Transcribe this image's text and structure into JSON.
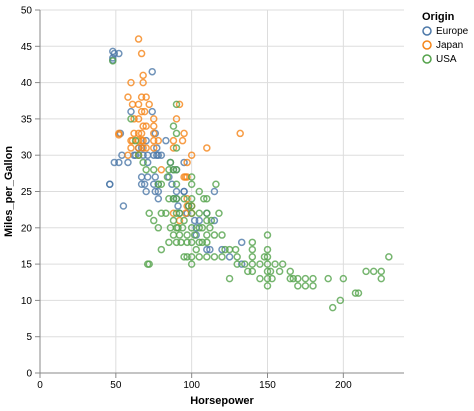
{
  "chart_data": {
    "type": "scatter",
    "xlabel": "Horsepower",
    "ylabel": "Miles_per_Gallon",
    "xlim": [
      0,
      240
    ],
    "ylim": [
      0,
      50
    ],
    "x_ticks": [
      0,
      50,
      100,
      150,
      200
    ],
    "y_ticks": [
      0,
      5,
      10,
      15,
      20,
      25,
      30,
      35,
      40,
      45,
      50
    ],
    "grid": true,
    "marker": "open-circle",
    "legend": {
      "title": "Origin",
      "position": "top-right",
      "entries": [
        "Europe",
        "Japan",
        "USA"
      ]
    },
    "colors": {
      "Europe": "#4c78a8",
      "Japan": "#f58518",
      "USA": "#54a24b"
    },
    "series": [
      {
        "name": "Europe",
        "points": [
          [
            46,
            26
          ],
          [
            46,
            26
          ],
          [
            48,
            43.1
          ],
          [
            48,
            44.3
          ],
          [
            48,
            43.4
          ],
          [
            49,
            29
          ],
          [
            49,
            44
          ],
          [
            52,
            44
          ],
          [
            52,
            29
          ],
          [
            53,
            33
          ],
          [
            54,
            30
          ],
          [
            58,
            29
          ],
          [
            60,
            36
          ],
          [
            62,
            30
          ],
          [
            63,
            30
          ],
          [
            65,
            31
          ],
          [
            67,
            31
          ],
          [
            67,
            26
          ],
          [
            67,
            27
          ],
          [
            68,
            30
          ],
          [
            69,
            26
          ],
          [
            70,
            25
          ],
          [
            70,
            32
          ],
          [
            71,
            27
          ],
          [
            71,
            29
          ],
          [
            71,
            30
          ],
          [
            74,
            36
          ],
          [
            74,
            41.5
          ],
          [
            75,
            30
          ],
          [
            75,
            26
          ],
          [
            76,
            33
          ],
          [
            76,
            25
          ],
          [
            76,
            27
          ],
          [
            77,
            31
          ],
          [
            77,
            30
          ],
          [
            78,
            30
          ],
          [
            78,
            26
          ],
          [
            78,
            25
          ],
          [
            78,
            24
          ],
          [
            80,
            30
          ],
          [
            83,
            32
          ],
          [
            85,
            27
          ],
          [
            86,
            29
          ],
          [
            87,
            26
          ],
          [
            88,
            28
          ],
          [
            88,
            24
          ],
          [
            90,
            28
          ],
          [
            90,
            25
          ],
          [
            90,
            24
          ],
          [
            91,
            23
          ],
          [
            92,
            22
          ],
          [
            95,
            25
          ],
          [
            95,
            29
          ],
          [
            95,
            25
          ],
          [
            97,
            22
          ],
          [
            98,
            23
          ],
          [
            102,
            21
          ],
          [
            103,
            19
          ],
          [
            103,
            20
          ],
          [
            105,
            21
          ],
          [
            110,
            22
          ],
          [
            110,
            17
          ],
          [
            112,
            17
          ],
          [
            115,
            25
          ],
          [
            115,
            21
          ],
          [
            120,
            17
          ],
          [
            125,
            16
          ],
          [
            133,
            15
          ],
          [
            133,
            18
          ],
          [
            55,
            23
          ]
        ]
      },
      {
        "name": "Japan",
        "points": [
          [
            52,
            32.8
          ],
          [
            52,
            33
          ],
          [
            58,
            38
          ],
          [
            58,
            30
          ],
          [
            60,
            32
          ],
          [
            60,
            40
          ],
          [
            60,
            31
          ],
          [
            61,
            32
          ],
          [
            61,
            37
          ],
          [
            62,
            33
          ],
          [
            62,
            35
          ],
          [
            65,
            33
          ],
          [
            65,
            35
          ],
          [
            65,
            37
          ],
          [
            65,
            30
          ],
          [
            65,
            31
          ],
          [
            65,
            32
          ],
          [
            67,
            33
          ],
          [
            67,
            36
          ],
          [
            67,
            32
          ],
          [
            67,
            38
          ],
          [
            68,
            32
          ],
          [
            68,
            31
          ],
          [
            68,
            40
          ],
          [
            68,
            34
          ],
          [
            69,
            36
          ],
          [
            70,
            34
          ],
          [
            70,
            31
          ],
          [
            70,
            38
          ],
          [
            72,
            37
          ],
          [
            75,
            34
          ],
          [
            75,
            35
          ],
          [
            75,
            32
          ],
          [
            75,
            31
          ],
          [
            65,
            46
          ],
          [
            67,
            44
          ],
          [
            68,
            41
          ],
          [
            75,
            33
          ],
          [
            78,
            32
          ],
          [
            80,
            28
          ],
          [
            88,
            32
          ],
          [
            88,
            31
          ],
          [
            90,
            35
          ],
          [
            92,
            37
          ],
          [
            94,
            32
          ],
          [
            95,
            33
          ],
          [
            95,
            27
          ],
          [
            96,
            27
          ],
          [
            97,
            24
          ],
          [
            97,
            29
          ],
          [
            97,
            27
          ],
          [
            100,
            22
          ],
          [
            100,
            30
          ],
          [
            88,
            22
          ],
          [
            92,
            21
          ],
          [
            96,
            22
          ],
          [
            97,
            23
          ],
          [
            100,
            23
          ],
          [
            110,
            31
          ],
          [
            132,
            33
          ]
        ]
      },
      {
        "name": "USA",
        "points": [
          [
            48,
            43
          ],
          [
            60,
            35
          ],
          [
            63,
            32
          ],
          [
            65,
            30
          ],
          [
            68,
            29
          ],
          [
            70,
            28
          ],
          [
            71,
            15
          ],
          [
            72,
            15
          ],
          [
            72,
            22
          ],
          [
            75,
            21
          ],
          [
            75,
            28
          ],
          [
            78,
            26
          ],
          [
            78,
            20
          ],
          [
            80,
            22
          ],
          [
            80,
            17
          ],
          [
            80,
            26
          ],
          [
            83,
            22
          ],
          [
            84,
            27
          ],
          [
            85,
            18
          ],
          [
            85,
            24
          ],
          [
            85,
            28
          ],
          [
            86,
            29
          ],
          [
            86,
            20
          ],
          [
            88,
            21
          ],
          [
            88,
            19
          ],
          [
            88,
            24
          ],
          [
            88,
            34
          ],
          [
            88,
            28
          ],
          [
            90,
            18
          ],
          [
            90,
            20
          ],
          [
            90,
            22
          ],
          [
            90,
            24
          ],
          [
            90,
            26
          ],
          [
            90,
            28
          ],
          [
            90,
            31
          ],
          [
            90,
            33
          ],
          [
            90,
            37
          ],
          [
            91,
            20
          ],
          [
            92,
            19
          ],
          [
            92,
            22
          ],
          [
            93,
            18
          ],
          [
            94,
            20
          ],
          [
            95,
            16
          ],
          [
            95,
            24
          ],
          [
            95,
            21
          ],
          [
            97,
            18
          ],
          [
            97,
            16
          ],
          [
            97,
            19
          ],
          [
            98,
            23
          ],
          [
            100,
            15
          ],
          [
            100,
            16
          ],
          [
            100,
            18
          ],
          [
            100,
            20
          ],
          [
            100,
            22
          ],
          [
            100,
            23
          ],
          [
            100,
            24
          ],
          [
            100,
            26
          ],
          [
            100,
            27
          ],
          [
            102,
            19
          ],
          [
            103,
            17
          ],
          [
            105,
            18
          ],
          [
            105,
            20
          ],
          [
            105,
            22
          ],
          [
            105,
            16
          ],
          [
            105,
            25
          ],
          [
            107,
            20
          ],
          [
            107,
            18
          ],
          [
            108,
            24
          ],
          [
            110,
            16
          ],
          [
            110,
            18
          ],
          [
            110,
            19
          ],
          [
            110,
            21
          ],
          [
            110,
            22
          ],
          [
            110,
            24
          ],
          [
            112,
            20
          ],
          [
            113,
            21
          ],
          [
            115,
            19
          ],
          [
            115,
            16
          ],
          [
            116,
            26
          ],
          [
            118,
            22
          ],
          [
            120,
            16
          ],
          [
            120,
            19
          ],
          [
            122,
            17
          ],
          [
            125,
            17
          ],
          [
            125,
            13
          ],
          [
            129,
            17
          ],
          [
            130,
            16
          ],
          [
            130,
            15
          ],
          [
            135,
            15
          ],
          [
            137,
            14
          ],
          [
            140,
            14
          ],
          [
            140,
            15
          ],
          [
            140,
            16
          ],
          [
            140,
            17
          ],
          [
            140,
            18
          ],
          [
            145,
            13
          ],
          [
            145,
            15
          ],
          [
            148,
            16
          ],
          [
            150,
            12
          ],
          [
            150,
            13
          ],
          [
            150,
            14
          ],
          [
            150,
            15
          ],
          [
            150,
            16
          ],
          [
            150,
            17
          ],
          [
            150,
            19
          ],
          [
            152,
            14
          ],
          [
            153,
            13
          ],
          [
            155,
            15
          ],
          [
            158,
            14
          ],
          [
            160,
            15
          ],
          [
            165,
            13
          ],
          [
            165,
            14
          ],
          [
            167,
            13
          ],
          [
            170,
            12
          ],
          [
            170,
            13
          ],
          [
            175,
            12
          ],
          [
            175,
            13
          ],
          [
            180,
            12
          ],
          [
            180,
            13
          ],
          [
            190,
            13
          ],
          [
            193,
            9
          ],
          [
            198,
            10
          ],
          [
            200,
            13
          ],
          [
            208,
            11
          ],
          [
            210,
            11
          ],
          [
            215,
            14
          ],
          [
            220,
            14
          ],
          [
            225,
            14
          ],
          [
            225,
            13
          ],
          [
            230,
            16
          ]
        ]
      }
    ]
  }
}
